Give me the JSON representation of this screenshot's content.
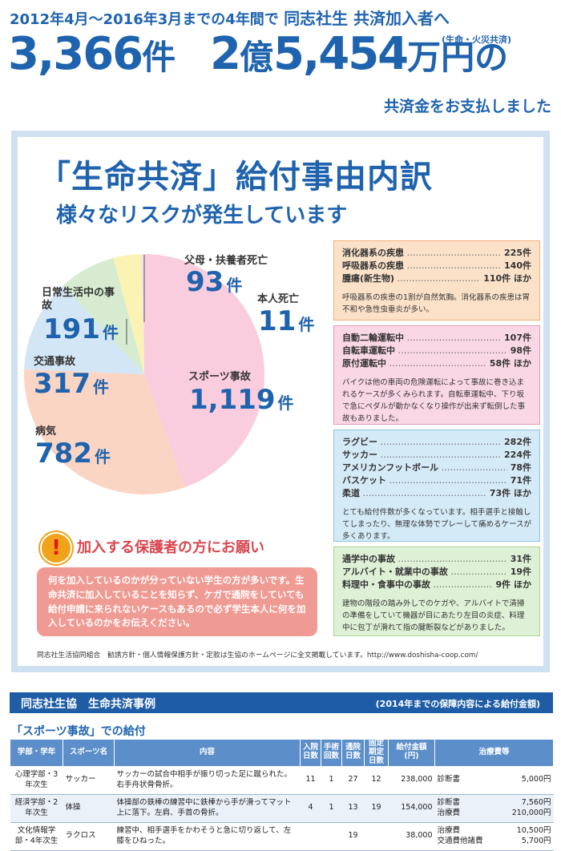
{
  "header": {
    "period": "2012年4月〜2016年3月までの4年間で",
    "target": "同志社生 共済加入者へ",
    "count_value": "3,366",
    "count_unit": "件",
    "amount_oku": "2",
    "amount_oku_unit": "億",
    "amount_man": "5,454",
    "amount_man_unit": "万円の",
    "amount_note": "(生命・火災共済)",
    "paid_text": "共済金をお支払しました"
  },
  "panel": {
    "title": "「生命共済」給付事由内訳",
    "subtitle": "様々なリスクが発生しています"
  },
  "chart_data": {
    "type": "pie",
    "title": "「生命共済」給付事由内訳",
    "unit": "件",
    "slices": [
      {
        "label": "スポーツ事故",
        "value": 1119,
        "display": "1,119",
        "color": "#f9cddd"
      },
      {
        "label": "病気",
        "value": 782,
        "display": "782",
        "color": "#fbd5c3"
      },
      {
        "label": "交通事故",
        "value": 317,
        "display": "317",
        "color": "#d3e6f6"
      },
      {
        "label": "日常生活中の事故",
        "value": 191,
        "display": "191",
        "color": "#d6ebd0"
      },
      {
        "label": "父母・扶養者死亡",
        "value": 93,
        "display": "93",
        "color": "#fbf3b3"
      },
      {
        "label": "本人死亡",
        "value": 11,
        "display": "11",
        "color": "#f4e0ea"
      }
    ]
  },
  "boxes": {
    "illness": {
      "rows": [
        {
          "name": "消化器系の疾患",
          "value": "225件"
        },
        {
          "name": "呼吸器系の疾患",
          "value": "140件"
        },
        {
          "name": "腫瘍(新生物)",
          "value": "110件 ほか"
        }
      ],
      "note": "呼吸器系の疾患の1割が自然気胸。消化器系の疾患は胃不和や急性虫垂炎が多い。"
    },
    "traffic": {
      "rows": [
        {
          "name": "自動二輪運転中",
          "value": "107件"
        },
        {
          "name": "自転車運転中",
          "value": "98件"
        },
        {
          "name": "原付運転中",
          "value": "58件 ほか"
        }
      ],
      "note": "バイクは他の車両の危険運転によって事故に巻き込まれるケースが多くみられます。自転車運転中、下り坂で急にペダルが動かなくなり操作が出来ず転倒した事故もありました。"
    },
    "sports": {
      "rows": [
        {
          "name": "ラグビー",
          "value": "282件"
        },
        {
          "name": "サッカー",
          "value": "224件"
        },
        {
          "name": "アメリカンフットボール",
          "value": "78件"
        },
        {
          "name": "バスケット",
          "value": "71件"
        },
        {
          "name": "柔道",
          "value": "73件 ほか"
        }
      ],
      "note": "とても給付件数が多くなっています。相手選手と接触してしまったり、無理な体勢でプレーして痛めるケースが多くあります。"
    },
    "daily": {
      "rows": [
        {
          "name": "通学中の事故",
          "value": "31件"
        },
        {
          "name": "アルバイト・就業中の事故",
          "value": "19件"
        },
        {
          "name": "料理中・食事中の事故",
          "value": "9件 ほか"
        }
      ],
      "note": "建物の階段の踏み外しでのケガや、アルバイトで清掃の準備をしていて機器が目にあたり左目の炎症、料理中に包丁が滑れて指の腱断裂などがありました。"
    }
  },
  "request": {
    "icon_glyph": "!",
    "title": "加入する保護者の方にお願い",
    "body": "何を加入しているのかが分っていない学生の方が多いです。生命共済に加入していることを知らず、ケガで通院をしていても給付申請に来られないケースもあるので必ず学生本人に何を加入しているのかをお伝えください。"
  },
  "footer_note": "同志社生活協同組合　勧誘方針・個人情報保護方針・定款は生協のホームページに全文掲載しています。http://www.doshisha-coop.com/",
  "case_section": {
    "bar_title": "同志社生協　生命共済事例",
    "bar_note": "(2014年までの保障内容による給付金額)",
    "heading": "「スポーツ事故」での給付",
    "columns": [
      "学部・学年",
      "スポーツ名",
      "内容",
      "入院日数",
      "手術回数",
      "通院日数",
      "固定期定日数",
      "給付金額(円)",
      "治療費等"
    ],
    "rows": [
      {
        "faculty": "心理学部・3年次生",
        "sport": "サッカー",
        "content": "サッカーの試合中相手が振り切った足に蹴られた。右手舟状骨骨折。",
        "hosp": "11",
        "surg": "1",
        "visit": "27",
        "fixed": "12",
        "amount": "238,000",
        "t1": "診断書",
        "v1": "5,000円",
        "t2": "",
        "v2": ""
      },
      {
        "faculty": "経済学部・2年次生",
        "sport": "体操",
        "content": "体操部の鉄棒の練習中に鉄棒から手が滑ってマット上に落下。左肩、手首の骨折。",
        "hosp": "4",
        "surg": "1",
        "visit": "13",
        "fixed": "19",
        "amount": "154,000",
        "t1": "診断書",
        "v1": "7,560円",
        "t2": "治療費",
        "v2": "210,000円"
      },
      {
        "faculty": "文化情報学部・4年次生",
        "sport": "ラクロス",
        "content": "練習中、相手選手をかわそうと急に切り返して、左膝をひねった。",
        "hosp": "",
        "surg": "",
        "visit": "19",
        "fixed": "",
        "amount": "38,000",
        "t1": "治療費",
        "v1": "10,500円",
        "t2": "交通費他諸費",
        "v2": "5,700円"
      }
    ]
  }
}
